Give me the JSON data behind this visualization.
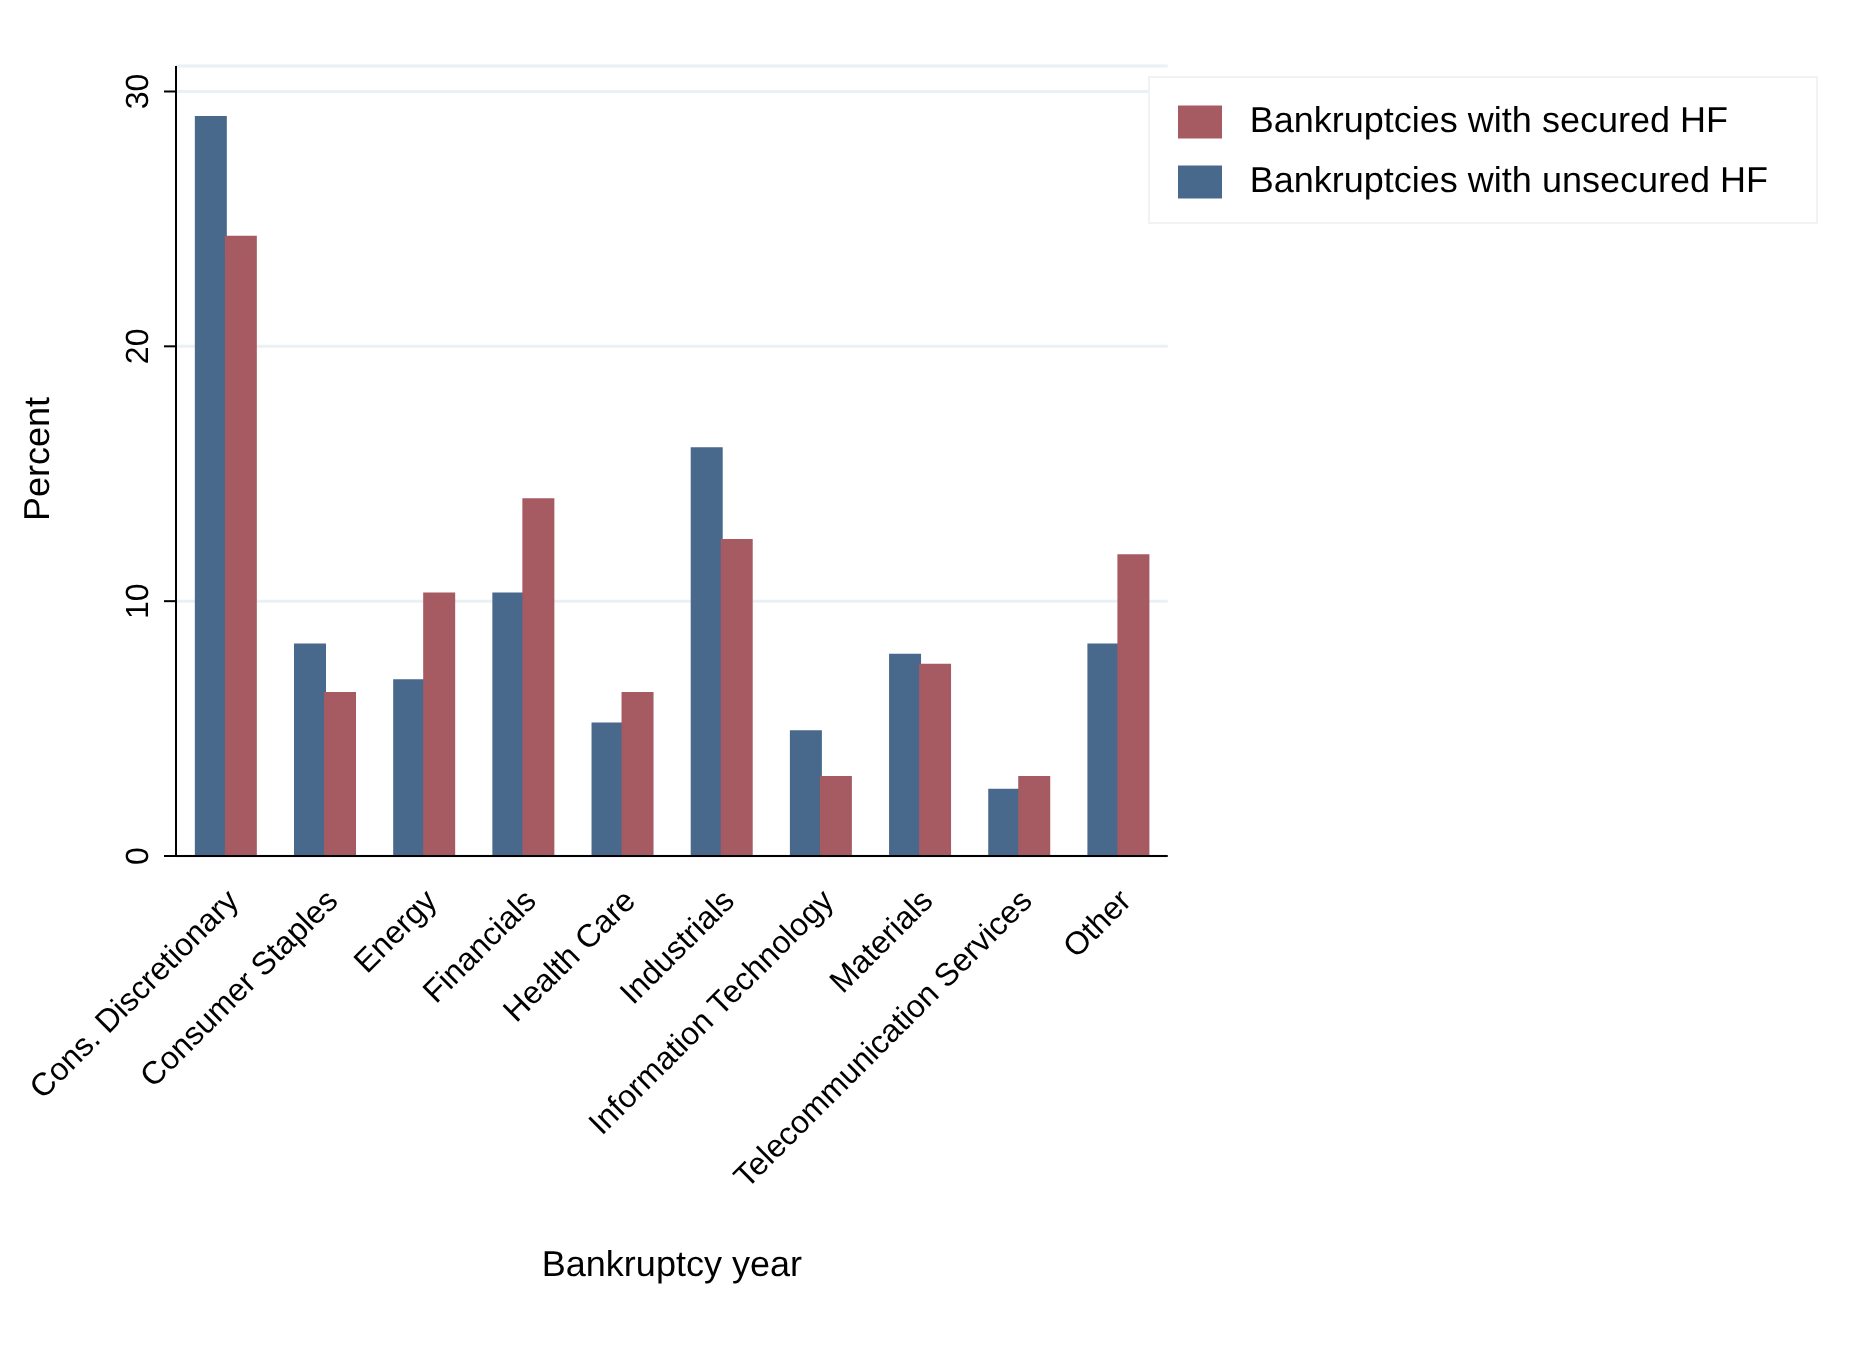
{
  "chart_data": {
    "type": "bar",
    "xlabel": "Bankruptcy year",
    "ylabel": "Percent",
    "categories": [
      "Cons. Discretionary",
      "Consumer Staples",
      "Energy",
      "Financials",
      "Health Care",
      "Industrials",
      "Information Technology",
      "Materials",
      "Telecommunication Services",
      "Other"
    ],
    "series": [
      {
        "name": "Bankruptcies with unsecured HF",
        "color": "#48698c",
        "values": [
          29.0,
          8.3,
          6.9,
          10.3,
          5.2,
          16.0,
          4.9,
          7.9,
          2.6,
          8.3
        ]
      },
      {
        "name": "Bankruptcies with secured HF",
        "color": "#a65a62",
        "values": [
          24.3,
          6.4,
          10.3,
          14.0,
          6.4,
          12.4,
          3.1,
          7.5,
          3.1,
          11.8
        ]
      }
    ],
    "ylim": [
      0,
      31
    ],
    "yticks": [
      0,
      10,
      20,
      30
    ],
    "grid": "y",
    "legend": "top right"
  }
}
